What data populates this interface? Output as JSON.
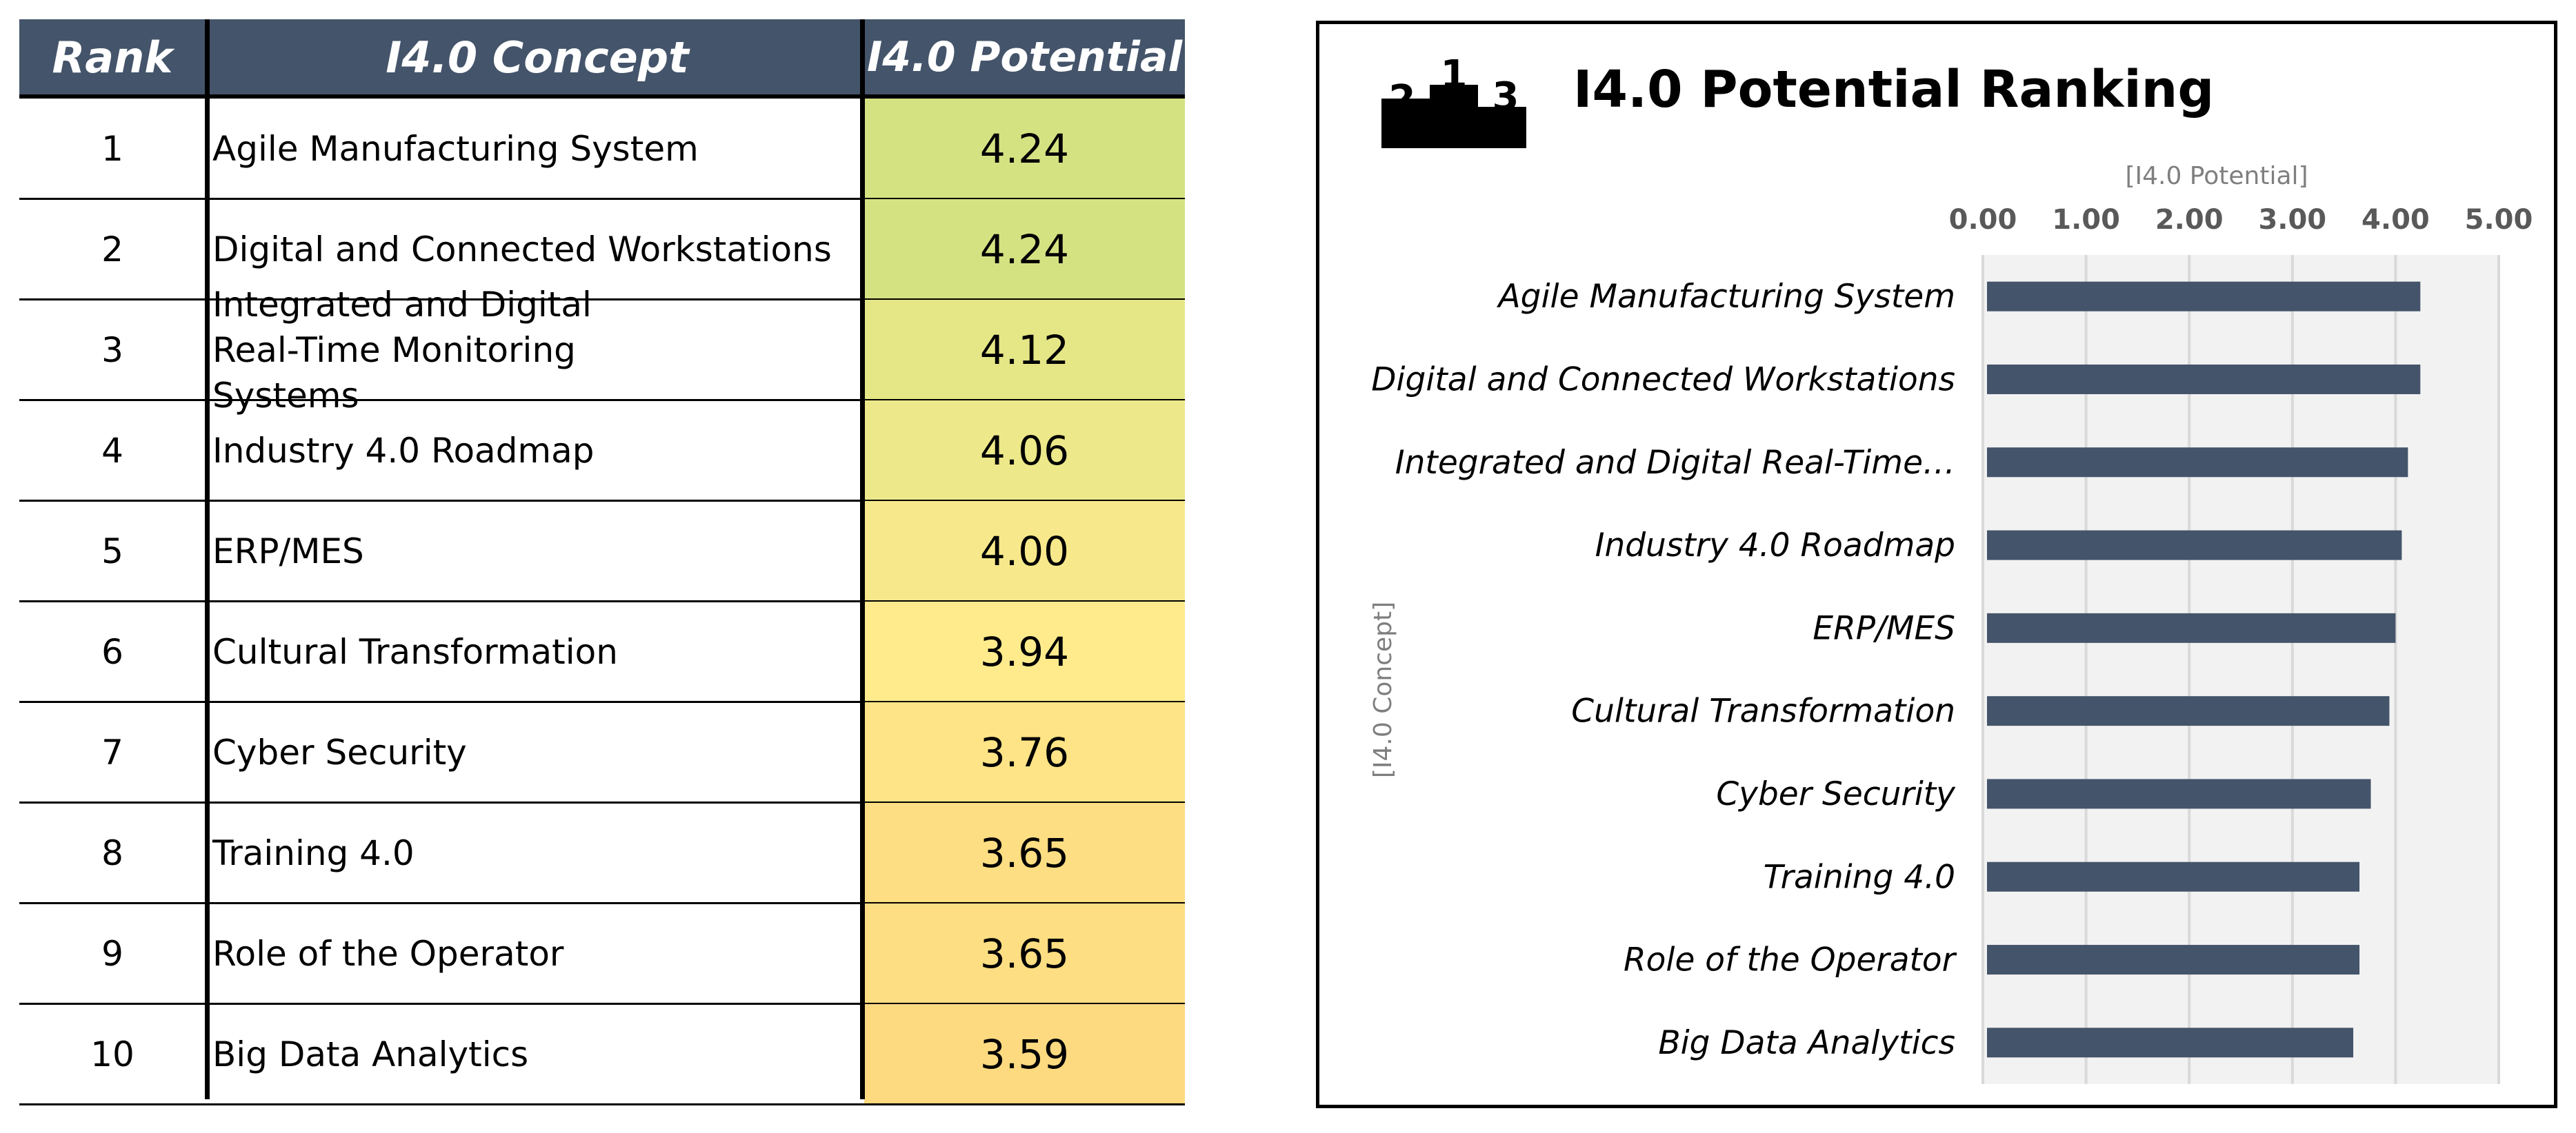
{
  "table": {
    "headers": {
      "rank": "Rank",
      "concept": "I4.0 Concept",
      "potential": "I4.0 Potential"
    },
    "rows": [
      {
        "rank": "1",
        "concept": "Agile Manufacturing System",
        "potential": "4.24",
        "color": "#d5e282"
      },
      {
        "rank": "2",
        "concept": "Digital and Connected Workstations",
        "potential": "4.24",
        "color": "#d5e282"
      },
      {
        "rank": "3",
        "concept": "Integrated and Digital Real-Time Monitoring Systems",
        "potential": "4.12",
        "color": "#e5e686"
      },
      {
        "rank": "4",
        "concept": "Industry 4.0 Roadmap",
        "potential": "4.06",
        "color": "#ede889"
      },
      {
        "rank": "5",
        "concept": "ERP/MES",
        "potential": "4.00",
        "color": "#f7e98b"
      },
      {
        "rank": "6",
        "concept": "Cultural Transformation",
        "potential": "3.94",
        "color": "#ffeb8c"
      },
      {
        "rank": "7",
        "concept": "Cyber Security",
        "potential": "3.76",
        "color": "#fee486"
      },
      {
        "rank": "8",
        "concept": "Training 4.0",
        "potential": "3.65",
        "color": "#fede82"
      },
      {
        "rank": "9",
        "concept": "Role of the Operator",
        "potential": "3.65",
        "color": "#fede82"
      },
      {
        "rank": "10",
        "concept": "Big Data Analytics",
        "potential": "3.59",
        "color": "#fdda80"
      }
    ]
  },
  "chart_data": {
    "type": "bar",
    "orientation": "horizontal",
    "title": "I4.0 Potential Ranking",
    "icon": "podium-icon",
    "podium_labels": [
      "2",
      "1",
      "3"
    ],
    "xlabel": "[I4.0 Potential]",
    "ylabel": "[I4.0 Concept]",
    "xlim": [
      0,
      5
    ],
    "xticks": [
      "0.00",
      "1.00",
      "2.00",
      "3.00",
      "4.00",
      "5.00"
    ],
    "x_axis_position": "top",
    "grid": true,
    "categories": [
      "Agile Manufacturing System",
      "Digital and Connected Workstations",
      "Integrated and Digital Real-Time…",
      "Industry 4.0 Roadmap",
      "ERP/MES",
      "Cultural Transformation",
      "Cyber Security",
      "Training 4.0",
      "Role of the Operator",
      "Big Data Analytics"
    ],
    "values": [
      4.24,
      4.24,
      4.12,
      4.06,
      4.0,
      3.94,
      3.76,
      3.65,
      3.65,
      3.59
    ],
    "bar_color": "#44546a",
    "plot_background": "#f2f2f2"
  }
}
